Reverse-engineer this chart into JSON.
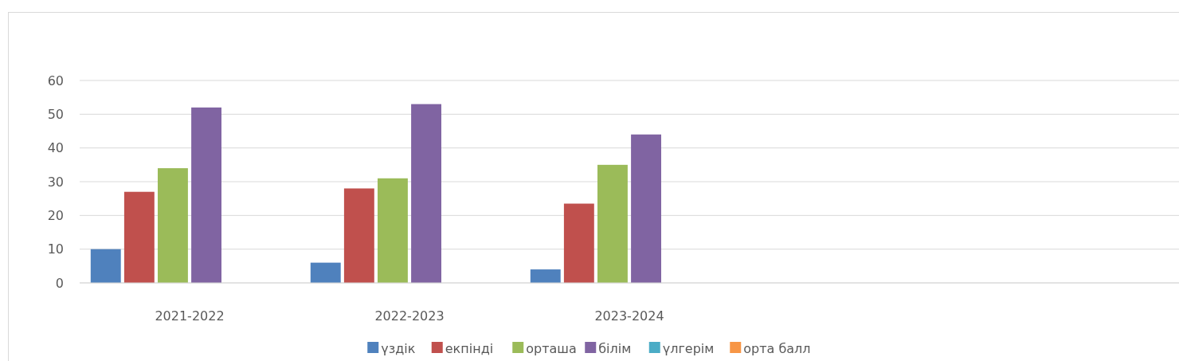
{
  "chart_data": {
    "type": "bar",
    "categories": [
      "2021-2022",
      "2022-2023",
      "2023-2024",
      null,
      null
    ],
    "series": [
      {
        "name": "үздік",
        "color": "#4f81bd",
        "values": [
          10,
          6,
          4,
          null,
          null
        ]
      },
      {
        "name": "екпінді",
        "color": "#c0504d",
        "values": [
          27,
          28,
          23.5,
          null,
          null
        ]
      },
      {
        "name": "орташа",
        "color": "#9bbb59",
        "values": [
          34,
          31,
          35,
          null,
          null
        ]
      },
      {
        "name": "білім",
        "color": "#8064a2",
        "values": [
          52,
          53,
          44,
          null,
          null
        ]
      },
      {
        "name": "үлгерім",
        "color": "#4bacc6",
        "values": [
          null,
          null,
          null,
          null,
          null
        ]
      },
      {
        "name": "орта балл",
        "color": "#f79646",
        "values": [
          null,
          null,
          null,
          null,
          null
        ]
      }
    ],
    "ylim": [
      0,
      60
    ],
    "yticks": [
      0,
      10,
      20,
      30,
      40,
      50,
      60
    ],
    "grid": "y",
    "legend": "bottom"
  }
}
